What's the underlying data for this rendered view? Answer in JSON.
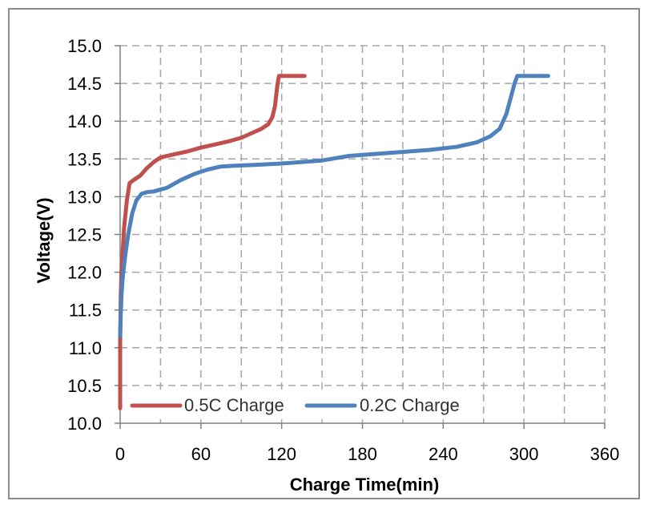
{
  "chart_data": {
    "type": "line",
    "title": "",
    "xlabel": "Charge Time(min)",
    "ylabel": "Voltage(V)",
    "xlim": [
      0,
      360
    ],
    "ylim": [
      10.0,
      15.0
    ],
    "x_ticks": [
      0,
      60,
      120,
      180,
      240,
      300,
      360
    ],
    "y_ticks": [
      10.0,
      10.5,
      11.0,
      11.5,
      12.0,
      12.5,
      13.0,
      13.5,
      14.0,
      14.5,
      15.0
    ],
    "x_tick_labels": [
      "0",
      "60",
      "120",
      "180",
      "240",
      "300",
      "360"
    ],
    "y_tick_labels": [
      "10.0",
      "10.5",
      "11.0",
      "11.5",
      "12.0",
      "12.5",
      "13.0",
      "13.5",
      "14.0",
      "14.5",
      "15.0"
    ],
    "grid": true,
    "legend_position": "bottom-left",
    "series": [
      {
        "name": "0.5C Charge",
        "color": "#c0504d",
        "x": [
          0,
          0,
          0.5,
          1,
          2,
          3,
          5,
          7,
          10,
          15,
          20,
          25,
          30,
          40,
          50,
          60,
          70,
          80,
          90,
          100,
          105,
          110,
          113,
          115,
          116,
          117,
          118,
          119,
          125,
          130,
          137
        ],
        "y": [
          10.2,
          11.1,
          11.7,
          12.0,
          12.3,
          12.6,
          12.95,
          13.18,
          13.22,
          13.28,
          13.38,
          13.46,
          13.52,
          13.56,
          13.6,
          13.65,
          13.69,
          13.73,
          13.78,
          13.86,
          13.9,
          13.96,
          14.05,
          14.2,
          14.35,
          14.5,
          14.6,
          14.6,
          14.6,
          14.6,
          14.6
        ]
      },
      {
        "name": "0.2C Charge",
        "color": "#4f81bd",
        "x": [
          0,
          0.5,
          1,
          2,
          4,
          6,
          9,
          12,
          16,
          20,
          25,
          35,
          45,
          55,
          65,
          75,
          85,
          100,
          120,
          150,
          170,
          200,
          230,
          250,
          265,
          275,
          282,
          287,
          290,
          293,
          295,
          297,
          300,
          310,
          318
        ],
        "y": [
          11.15,
          11.45,
          11.7,
          11.95,
          12.25,
          12.5,
          12.78,
          12.95,
          13.04,
          13.06,
          13.07,
          13.12,
          13.22,
          13.3,
          13.36,
          13.4,
          13.41,
          13.42,
          13.44,
          13.48,
          13.54,
          13.58,
          13.62,
          13.66,
          13.72,
          13.8,
          13.9,
          14.1,
          14.3,
          14.5,
          14.6,
          14.6,
          14.6,
          14.6,
          14.6
        ]
      }
    ]
  }
}
